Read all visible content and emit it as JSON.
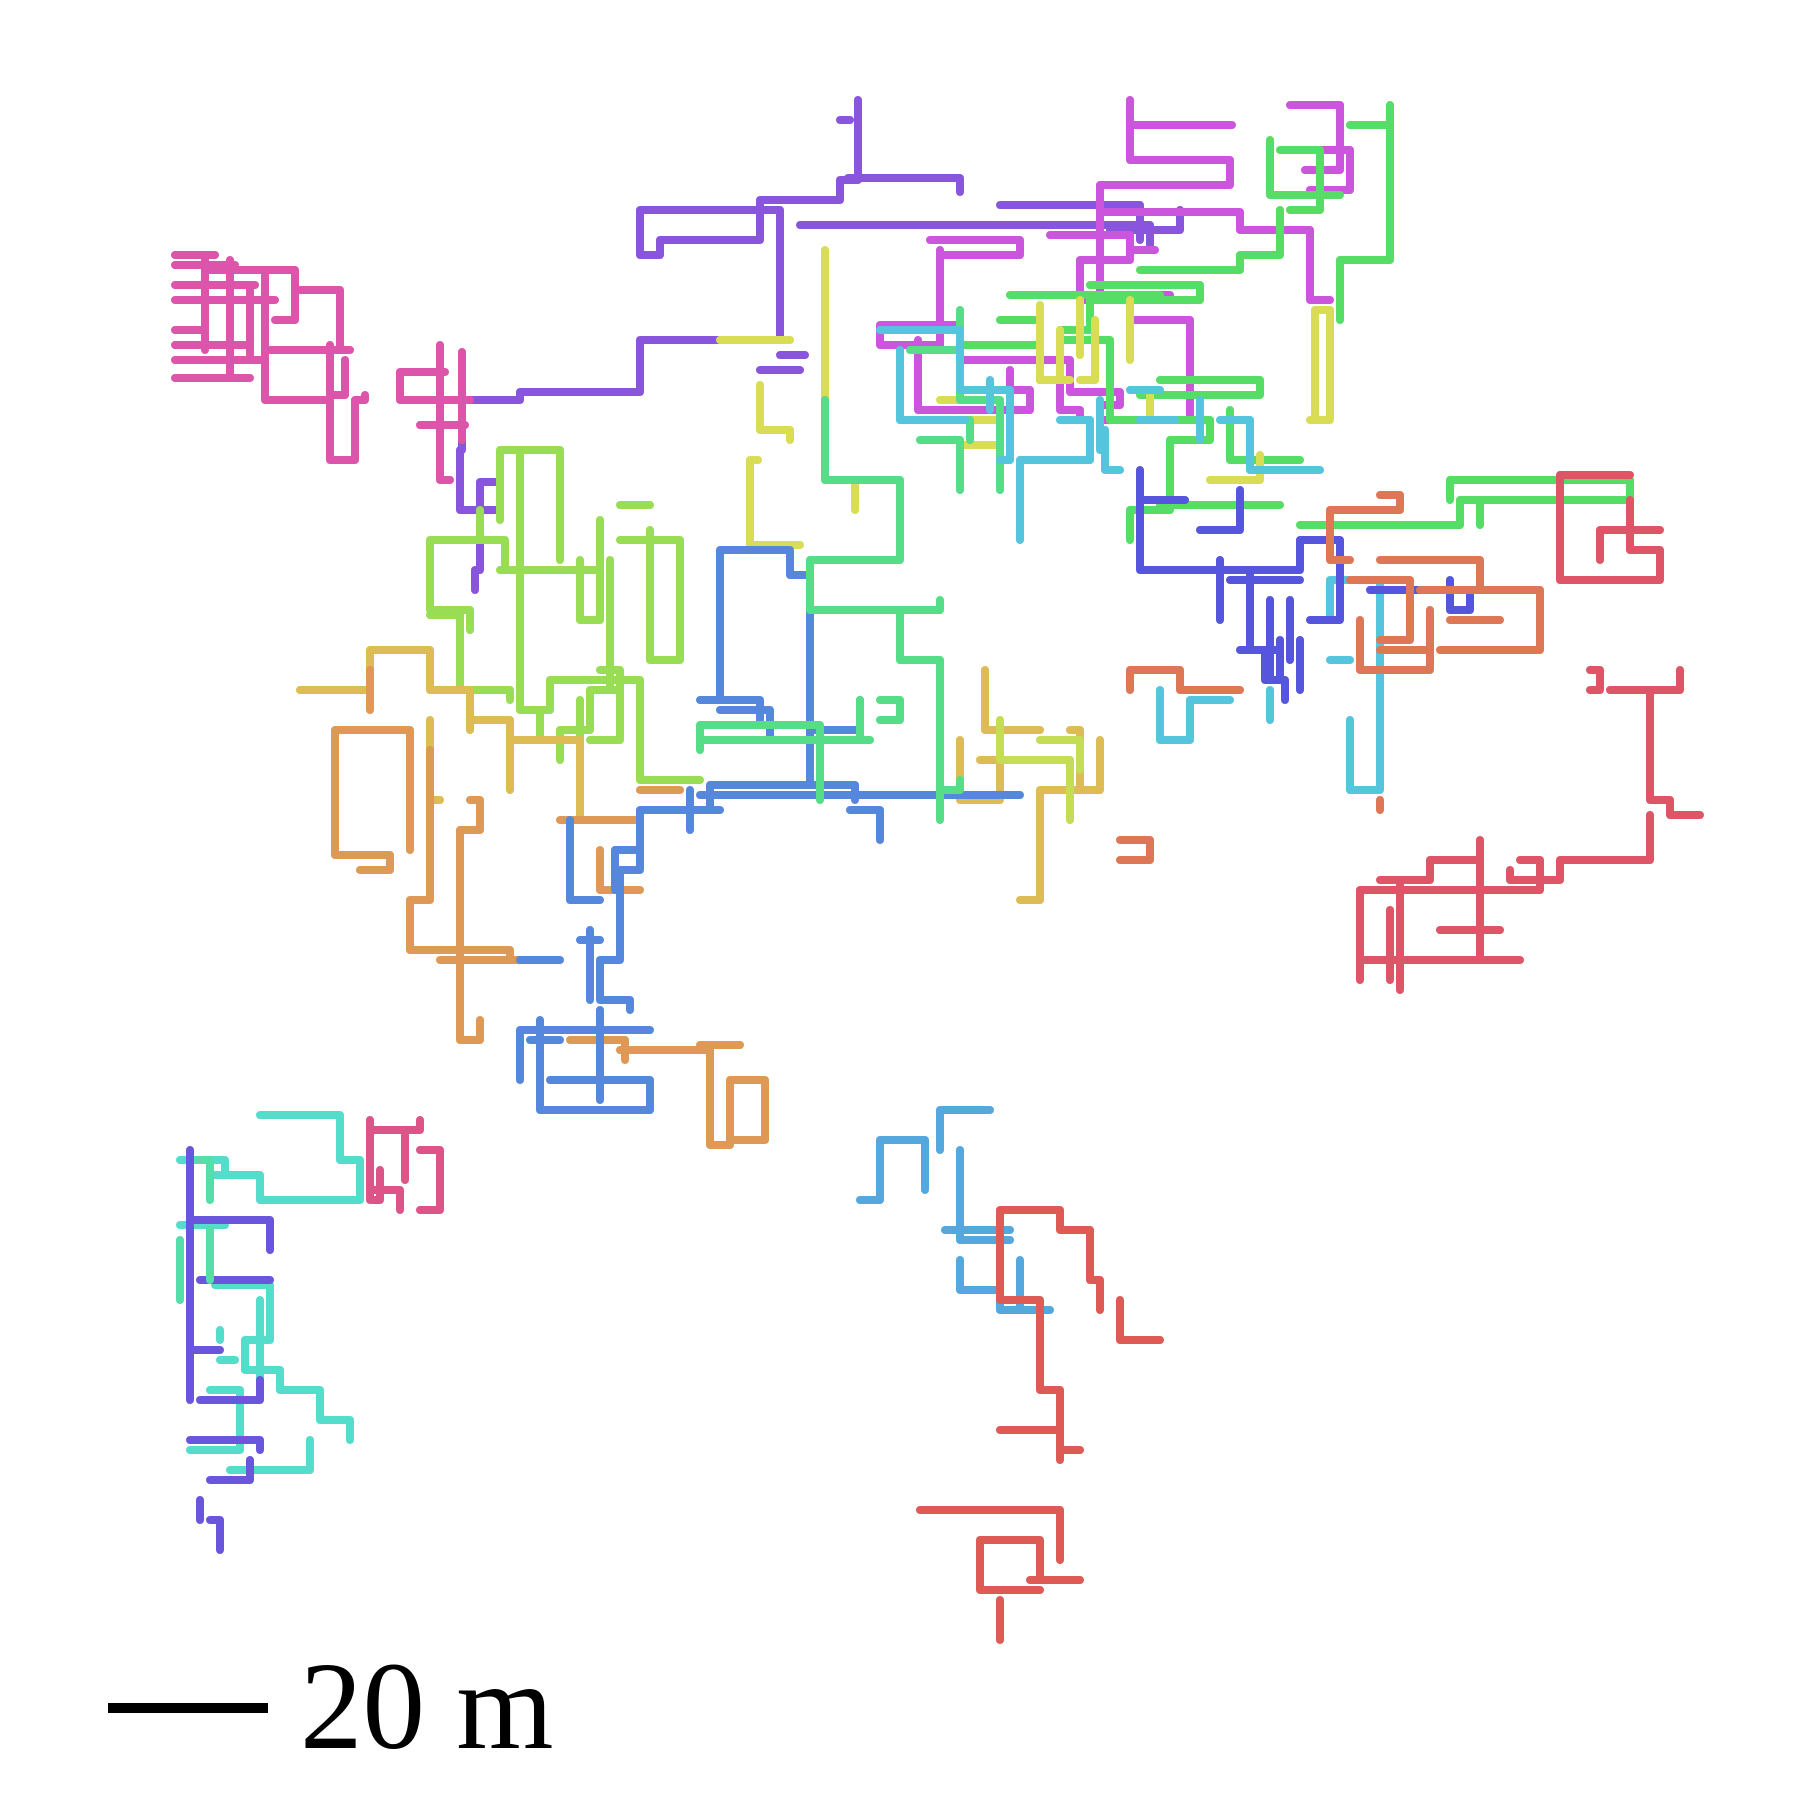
{
  "scale_bar": {
    "label": "20 m"
  },
  "tracks": [
    {
      "name": "violet",
      "color": "#8a55dd"
    },
    {
      "name": "magenta",
      "color": "#cc55dd"
    },
    {
      "name": "green",
      "color": "#55dd66"
    },
    {
      "name": "pink",
      "color": "#dd55aa"
    },
    {
      "name": "yellow",
      "color": "#d8dd55"
    },
    {
      "name": "lime",
      "color": "#99dd55"
    },
    {
      "name": "amber",
      "color": "#ddbb55"
    },
    {
      "name": "orange",
      "color": "#dd9955"
    },
    {
      "name": "blue",
      "color": "#5588dd"
    },
    {
      "name": "mint",
      "color": "#55dd88"
    },
    {
      "name": "cyan",
      "color": "#55c4dd"
    },
    {
      "name": "indigo",
      "color": "#5555dd"
    },
    {
      "name": "coral",
      "color": "#dd7755"
    },
    {
      "name": "crimson",
      "color": "#dd5566"
    },
    {
      "name": "teal",
      "color": "#55ddcc"
    },
    {
      "name": "sky",
      "color": "#55a8dd"
    },
    {
      "name": "red",
      "color": "#dd5a55"
    },
    {
      "name": "purple",
      "color": "#6a55dd"
    },
    {
      "name": "rose",
      "color": "#dd5588"
    },
    {
      "name": "seafoam",
      "color": "#55ddaa"
    },
    {
      "name": "olive",
      "color": "#c4dd55"
    }
  ]
}
